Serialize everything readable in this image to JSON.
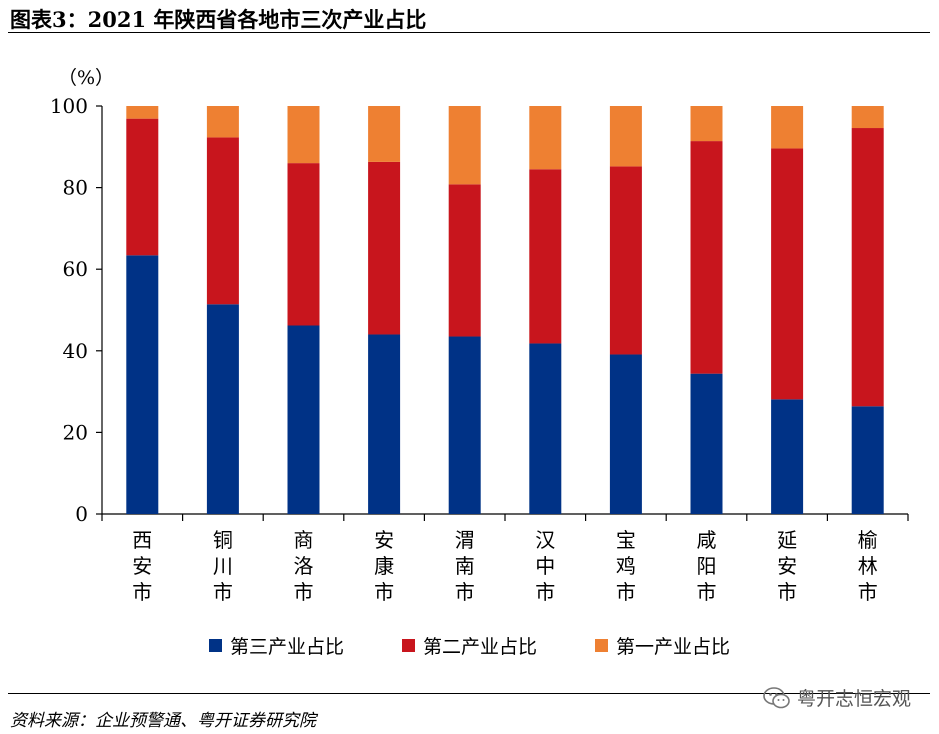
{
  "title": "图表3：2021 年陕西省各地市三次产业占比",
  "source": "资料来源：企业预警通、粤开证券研究院",
  "watermark": "粤开志恒宏观",
  "colors": {
    "tertiary": "#003286",
    "secondary": "#C8151D",
    "primary": "#EE8032"
  },
  "chart_data": {
    "type": "bar",
    "stacked": true,
    "unit_label": "（%）",
    "ylim": [
      0,
      100
    ],
    "yticks": [
      0,
      20,
      40,
      60,
      80,
      100
    ],
    "categories": [
      "西安市",
      "铜川市",
      "商洛市",
      "安康市",
      "渭南市",
      "汉中市",
      "宝鸡市",
      "咸阳市",
      "延安市",
      "榆林市"
    ],
    "series": [
      {
        "name": "第三产业占比",
        "color": "#003286",
        "values": [
          63.4,
          51.4,
          46.2,
          44.0,
          43.5,
          41.8,
          39.1,
          34.4,
          28.1,
          26.4
        ]
      },
      {
        "name": "第二产业占比",
        "color": "#C8151D",
        "values": [
          33.5,
          40.9,
          39.8,
          42.3,
          37.3,
          42.7,
          46.1,
          57.0,
          61.5,
          68.2
        ]
      },
      {
        "name": "第一产业占比",
        "color": "#EE8032",
        "values": [
          3.1,
          7.7,
          14.0,
          13.7,
          19.2,
          15.5,
          14.8,
          8.6,
          10.4,
          5.4
        ]
      }
    ],
    "legend_position": "bottom",
    "grid": false
  }
}
